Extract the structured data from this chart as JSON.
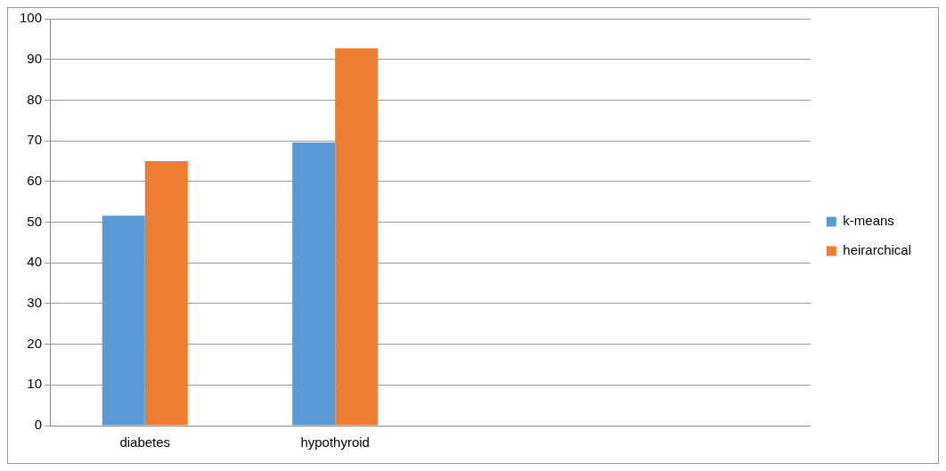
{
  "chart_data": {
    "type": "bar",
    "categories": [
      "diabetes",
      "hypothyroid",
      null,
      null
    ],
    "series": [
      {
        "name": "k-means",
        "color": "#5b9bd5",
        "values": [
          51.6,
          69.6,
          null,
          null
        ]
      },
      {
        "name": "heirarchical",
        "color": "#ed7d31",
        "values": [
          65.0,
          92.7,
          null,
          null
        ]
      }
    ],
    "ylim": [
      0,
      100
    ],
    "yticks": [
      0,
      10,
      20,
      30,
      40,
      50,
      60,
      70,
      80,
      90,
      100
    ],
    "grid": "y",
    "legend": "right"
  }
}
